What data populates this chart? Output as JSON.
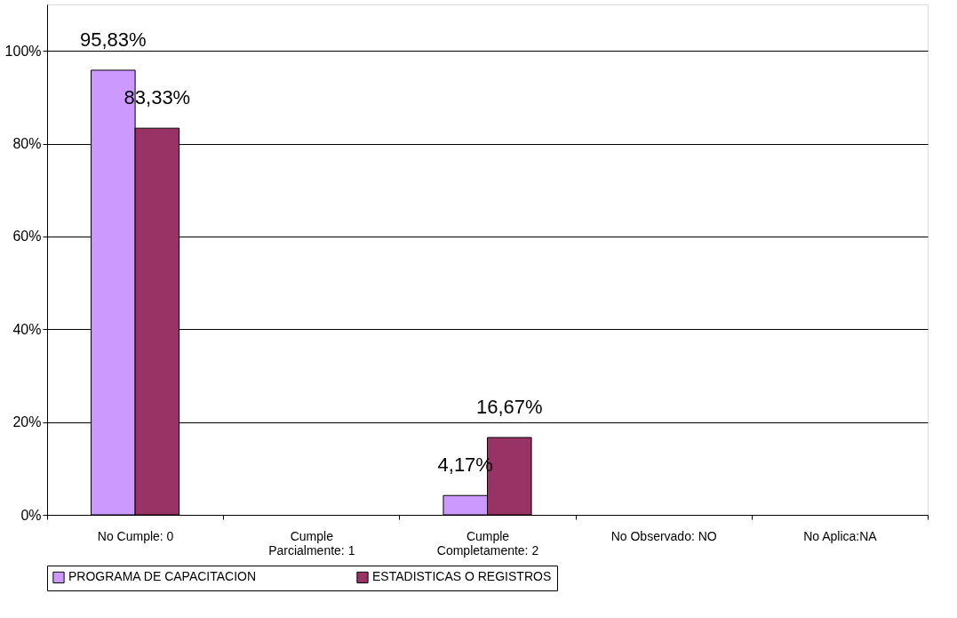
{
  "chart_data": {
    "type": "bar",
    "categories": [
      "No Cumple: 0",
      "Cumple Parcialmente: 1",
      "Cumple Completamente: 2",
      "No Observado: NO",
      "No Aplica:NA"
    ],
    "series": [
      {
        "name": "PROGRAMA DE CAPACITACION",
        "color": "#cc99ff",
        "values": [
          95.83,
          0,
          4.17,
          0,
          0
        ],
        "value_labels": [
          "95,83%",
          null,
          "4,17%",
          null,
          null
        ]
      },
      {
        "name": "ESTADISTICAS O REGISTROS",
        "color": "#993366",
        "values": [
          83.33,
          0,
          16.67,
          0,
          0
        ],
        "value_labels": [
          "83,33%",
          null,
          "16,67%",
          null,
          null
        ]
      }
    ],
    "ylim": [
      0,
      110
    ],
    "yticks": [
      {
        "value": 0,
        "label": "0%"
      },
      {
        "value": 20,
        "label": "20%"
      },
      {
        "value": 40,
        "label": "40%"
      },
      {
        "value": 60,
        "label": "60%"
      },
      {
        "value": 80,
        "label": "80%"
      },
      {
        "value": 100,
        "label": "100%"
      }
    ],
    "grid": "y",
    "legend": "bottom"
  }
}
